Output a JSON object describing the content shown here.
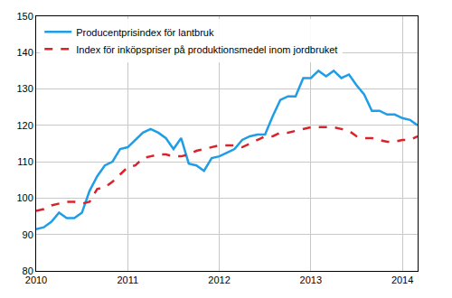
{
  "chart_data": {
    "type": "line",
    "categories": [
      "2010",
      null,
      null,
      null,
      null,
      null,
      null,
      null,
      null,
      null,
      null,
      null,
      "2011",
      null,
      null,
      null,
      null,
      null,
      null,
      null,
      null,
      null,
      null,
      null,
      "2012",
      null,
      null,
      null,
      null,
      null,
      null,
      null,
      null,
      null,
      null,
      null,
      "2013",
      null,
      null,
      null,
      null,
      null,
      null,
      null,
      null,
      null,
      null,
      null,
      "2014",
      null,
      null
    ],
    "series": [
      {
        "name": "Producentprisindex för lantbruk",
        "color": "#1f9de6",
        "line_style": "solid",
        "values": [
          91.5,
          92,
          93.5,
          96,
          94.5,
          94.5,
          96,
          102,
          106,
          109,
          110,
          113.5,
          114,
          116,
          118,
          119,
          118,
          116.5,
          113.5,
          116.5,
          109.5,
          109,
          107.5,
          111,
          111.5,
          112.5,
          113.5,
          116,
          117,
          117.5,
          117.5,
          122.5,
          127,
          128,
          128,
          133,
          133,
          135,
          133.5,
          135,
          133,
          134,
          131,
          128.5,
          124,
          124,
          123,
          123,
          122,
          121.5,
          120
        ]
      },
      {
        "name": "Index för inköpspriser på produktionsmedel inom jordbruket",
        "color": "#d9232b",
        "line_style": "dashed",
        "values": [
          96.5,
          97,
          98,
          98.5,
          99,
          99,
          98.5,
          99,
          102.5,
          103,
          104.5,
          106.5,
          108.5,
          109,
          111,
          111.5,
          112,
          112,
          111.5,
          111.5,
          112,
          113,
          113.5,
          114,
          114.5,
          114.5,
          114.5,
          114,
          115,
          116,
          117,
          117,
          118,
          118,
          118.5,
          119,
          119.5,
          119.5,
          119.5,
          119.5,
          119,
          118.5,
          117,
          116.5,
          116.5,
          116,
          115.5,
          115.5,
          116,
          116,
          117
        ]
      }
    ],
    "ylim": [
      80,
      150
    ],
    "yticks": [
      80,
      90,
      100,
      110,
      120,
      130,
      140,
      150
    ],
    "grid": true,
    "legend": "upper left"
  }
}
